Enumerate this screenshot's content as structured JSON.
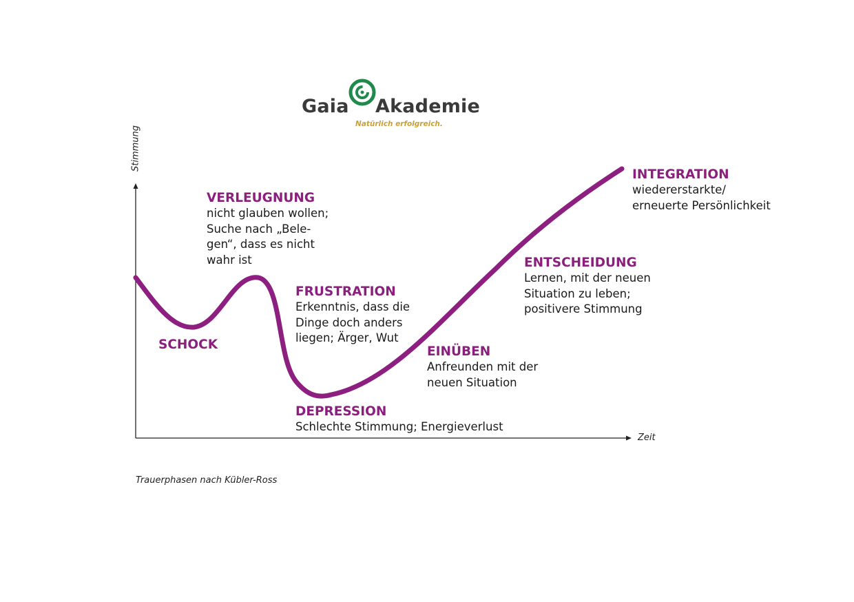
{
  "logo": {
    "word_left": "Gaia",
    "word_right": "Akademie",
    "tagline": "Natürlich erfolgreich."
  },
  "axes": {
    "y_label": "Stimmung",
    "x_label": "Zeit"
  },
  "phases": {
    "schock": {
      "title": "SCHOCK",
      "description": ""
    },
    "verleugnung": {
      "title": "VERLEUGNUNG",
      "description": "nicht glauben wollen;\nSuche nach „Bele-\ngen“, dass es nicht\nwahr ist"
    },
    "frustration": {
      "title": "FRUSTRATION",
      "description": "Erkenntnis, dass die\nDinge doch anders\nliegen; Ärger, Wut"
    },
    "depression": {
      "title": "DEPRESSION",
      "description": "Schlechte Stimmung; Energieverlust"
    },
    "einueben": {
      "title": "EINÜBEN",
      "description": "Anfreunden mit der\nneuen Situation"
    },
    "entscheidung": {
      "title": "ENTSCHEIDUNG",
      "description": "Lernen, mit der neuen\nSituation zu leben;\npositivere Stimmung"
    },
    "integration": {
      "title": "INTEGRATION",
      "description": "wiedererstarkte/\nerneuerte Persönlichkeit"
    }
  },
  "caption": "Trauerphasen nach Kübler-Ross",
  "colors": {
    "accent": "#8b1f7d",
    "curve": "#8c1f80",
    "logo_green": "#1f8a4c",
    "logo_text": "#3a3a3a",
    "tagline": "#c9a13b",
    "axis": "#222222"
  }
}
